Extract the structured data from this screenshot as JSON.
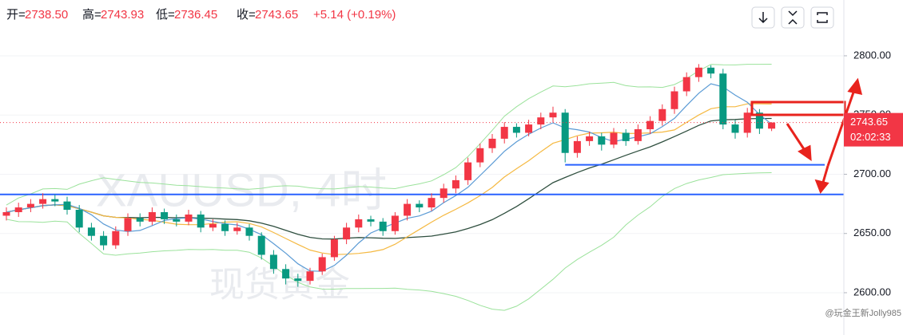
{
  "chart_data": {
    "type": "candlestick",
    "header": [
      {
        "label": "开=",
        "value": "2738.50"
      },
      {
        "label": "高=",
        "value": "2743.93"
      },
      {
        "label": "低=",
        "value": "2736.45"
      },
      {
        "label": "收=",
        "value": "2743.65"
      }
    ],
    "change": "+5.14 (+0.19%)",
    "watermark": [
      "XAUUSD, 4时",
      "现货黄金"
    ],
    "credit": "@玩金王新Jolly985",
    "up_color": "#f23645",
    "down_color": "#089981",
    "open": [
      2665,
      2668,
      2672,
      2675,
      2679,
      2677,
      2670,
      2655,
      2648,
      2640,
      2652,
      2663,
      2660,
      2668,
      2662,
      2660,
      2666,
      2655,
      2658,
      2652,
      2655,
      2648,
      2632,
      2620,
      2612,
      2610,
      2618,
      2630,
      2645,
      2655,
      2662,
      2660,
      2652,
      2665,
      2675,
      2672,
      2680,
      2688,
      2695,
      2710,
      2722,
      2730,
      2740,
      2735,
      2742,
      2748,
      2752,
      2718,
      2728,
      2732,
      2725,
      2735,
      2728,
      2738,
      2745,
      2755,
      2770,
      2782,
      2790,
      2785,
      2742,
      2735,
      2752,
      2738.5
    ],
    "high": [
      2672,
      2676,
      2679,
      2684,
      2683,
      2681,
      2674,
      2659,
      2652,
      2656,
      2667,
      2667,
      2672,
      2671,
      2666,
      2670,
      2669,
      2662,
      2661,
      2659,
      2658,
      2651,
      2636,
      2624,
      2616,
      2621,
      2633,
      2648,
      2659,
      2666,
      2665,
      2663,
      2668,
      2679,
      2678,
      2684,
      2692,
      2699,
      2714,
      2726,
      2734,
      2744,
      2743,
      2746,
      2752,
      2757,
      2755,
      2732,
      2736,
      2735,
      2739,
      2738,
      2742,
      2749,
      2759,
      2774,
      2786,
      2793,
      2792,
      2789,
      2746,
      2756,
      2755,
      2743.93
    ],
    "low": [
      2661,
      2664,
      2668,
      2671,
      2673,
      2666,
      2651,
      2644,
      2636,
      2637,
      2648,
      2656,
      2657,
      2658,
      2656,
      2657,
      2651,
      2652,
      2648,
      2649,
      2644,
      2628,
      2616,
      2607,
      2605,
      2607,
      2615,
      2627,
      2641,
      2651,
      2656,
      2648,
      2649,
      2661,
      2668,
      2669,
      2676,
      2684,
      2691,
      2706,
      2718,
      2726,
      2731,
      2732,
      2738,
      2744,
      2710,
      2714,
      2724,
      2720,
      2722,
      2724,
      2725,
      2734,
      2741,
      2751,
      2766,
      2778,
      2781,
      2738,
      2730,
      2731,
      2734,
      2736.45
    ],
    "close": [
      2668,
      2672,
      2675,
      2679,
      2677,
      2670,
      2655,
      2648,
      2640,
      2652,
      2663,
      2660,
      2668,
      2662,
      2660,
      2666,
      2655,
      2658,
      2652,
      2655,
      2648,
      2632,
      2620,
      2612,
      2610,
      2618,
      2630,
      2645,
      2655,
      2662,
      2660,
      2652,
      2665,
      2675,
      2672,
      2680,
      2688,
      2695,
      2710,
      2722,
      2730,
      2740,
      2735,
      2742,
      2748,
      2752,
      2718,
      2728,
      2732,
      2725,
      2735,
      2728,
      2738,
      2745,
      2755,
      2770,
      2782,
      2790,
      2785,
      2742,
      2735,
      2752,
      2738.5,
      2743.65
    ],
    "last_price": {
      "value": 2743.65,
      "label": "2743.65"
    },
    "countdown": "02:02:33",
    "levels": [
      {
        "value": 2683,
        "color": "#2962ff"
      },
      {
        "value": 2708,
        "color": "#2962ff",
        "start_index": 46
      }
    ],
    "ylim": [
      2564.3,
      2847.1
    ],
    "yticks": [
      {
        "value": 2600,
        "label": "2600.00"
      },
      {
        "value": 2650,
        "label": "2650.00"
      },
      {
        "value": 2700,
        "label": "2700.00"
      },
      {
        "value": 2750,
        "label": "2750.00"
      },
      {
        "value": 2800,
        "label": "2800.00"
      }
    ],
    "grid": true
  }
}
